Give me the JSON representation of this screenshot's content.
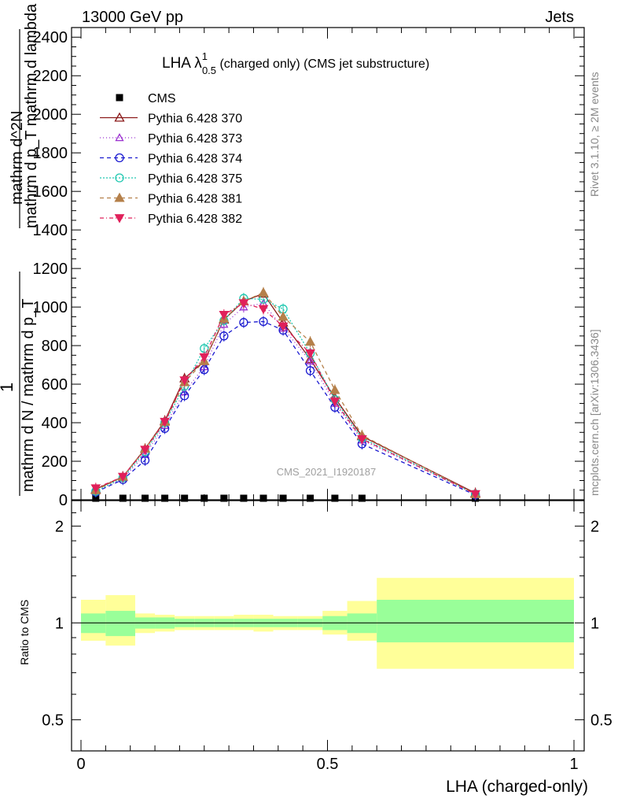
{
  "header": {
    "energy_label": "13000 GeV pp",
    "category_label": "Jets"
  },
  "plot_title": {
    "main": "LHA λ",
    "sup": "1",
    "sub": "0.5",
    "rest": " (charged only) (CMS jet substructure)"
  },
  "side_labels": {
    "rivet": "Rivet 3.1.10, ≥ 2M events",
    "mcplots": "mcplots.cern.ch [arXiv:1306.3436]"
  },
  "watermark": "CMS_2021_I1920187",
  "y_axis_label": {
    "numerator_one": "1",
    "denominator_one": "mathrm d N / mathrm d p_T",
    "numerator_two": "mathrm d^2N",
    "denominator_two": "mathrm d p_T mathrm d lambda"
  },
  "ratio_axis_label": "Ratio to CMS",
  "x_axis_label": "LHA (charged-only)",
  "colors": {
    "cms": "#000000",
    "p370": "#8b1a1a",
    "p373": "#9b30d0",
    "p374": "#1a1ad0",
    "p375": "#20c8b0",
    "p381": "#b5804a",
    "p382": "#e0205a",
    "band_inner": "#99ff99",
    "band_outer": "#ffff99"
  },
  "chart_data": {
    "type": "line",
    "x_edges": [
      0,
      0.05,
      0.11,
      0.15,
      0.19,
      0.23,
      0.27,
      0.31,
      0.35,
      0.39,
      0.44,
      0.49,
      0.54,
      0.6,
      1.0
    ],
    "x": [
      0.03,
      0.085,
      0.13,
      0.17,
      0.21,
      0.25,
      0.29,
      0.33,
      0.37,
      0.41,
      0.465,
      0.515,
      0.57,
      0.8
    ],
    "main": {
      "xlim": [
        -0.02,
        1.0
      ],
      "ylim": [
        0,
        2450
      ],
      "yticks": [
        0,
        200,
        400,
        600,
        800,
        1000,
        1200,
        1400,
        1600,
        1800,
        2000,
        2200,
        2400
      ],
      "series": [
        {
          "name": "CMS",
          "key": "cms",
          "marker": "square",
          "dash": "none",
          "values": [
            1,
            1,
            1,
            1,
            1,
            1,
            1,
            1,
            1,
            1,
            1,
            1,
            1,
            1
          ]
        },
        {
          "name": "Pythia 6.428 370",
          "key": "p370",
          "marker": "triangle-open",
          "dash": "none",
          "values": [
            55,
            120,
            265,
            410,
            630,
            720,
            935,
            1030,
            1070,
            920,
            730,
            530,
            330,
            35
          ]
        },
        {
          "name": "Pythia 6.428 373",
          "key": "p373",
          "marker": "triangle-open-small",
          "dash": "1,3",
          "values": [
            45,
            110,
            235,
            385,
            560,
            690,
            910,
            1000,
            1020,
            890,
            720,
            500,
            310,
            30
          ]
        },
        {
          "name": "Pythia 6.428 374",
          "key": "p374",
          "marker": "circle-open",
          "dash": "5,4",
          "values": [
            40,
            105,
            205,
            370,
            540,
            675,
            850,
            920,
            925,
            880,
            670,
            480,
            290,
            25
          ]
        },
        {
          "name": "Pythia 6.428 375",
          "key": "p375",
          "marker": "circle-open",
          "dash": "2,2",
          "values": [
            45,
            115,
            250,
            400,
            590,
            785,
            930,
            1045,
            1040,
            990,
            760,
            520,
            320,
            30
          ]
        },
        {
          "name": "Pythia 6.428 381",
          "key": "p381",
          "marker": "triangle-filled",
          "dash": "5,4",
          "values": [
            50,
            120,
            265,
            405,
            610,
            720,
            940,
            1030,
            1075,
            950,
            820,
            570,
            335,
            30
          ]
        },
        {
          "name": "Pythia 6.428 382",
          "key": "p382",
          "marker": "triangle-down-filled",
          "dash": "5,3,1,3",
          "values": [
            60,
            120,
            260,
            405,
            620,
            740,
            960,
            1020,
            990,
            900,
            760,
            510,
            315,
            30
          ]
        }
      ]
    },
    "ratio": {
      "ylim": [
        0.4,
        2.4
      ],
      "yticks": [
        0.5,
        1,
        2
      ],
      "log_scale": true,
      "band_inner_low": [
        0.93,
        0.91,
        0.96,
        0.96,
        0.97,
        0.97,
        0.97,
        0.97,
        0.97,
        0.97,
        0.97,
        0.95,
        0.93,
        0.87
      ],
      "band_inner_high": [
        1.07,
        1.09,
        1.04,
        1.04,
        1.03,
        1.03,
        1.03,
        1.03,
        1.03,
        1.03,
        1.03,
        1.05,
        1.07,
        1.18
      ],
      "band_outer_low": [
        0.88,
        0.85,
        0.93,
        0.94,
        0.95,
        0.95,
        0.95,
        0.95,
        0.94,
        0.95,
        0.95,
        0.92,
        0.88,
        0.72
      ],
      "band_outer_high": [
        1.18,
        1.22,
        1.07,
        1.06,
        1.05,
        1.05,
        1.05,
        1.06,
        1.06,
        1.05,
        1.05,
        1.09,
        1.17,
        1.38
      ]
    },
    "xticks": [
      0,
      0.5,
      1
    ],
    "xtick_labels": [
      "0",
      "0.5",
      "1"
    ]
  }
}
